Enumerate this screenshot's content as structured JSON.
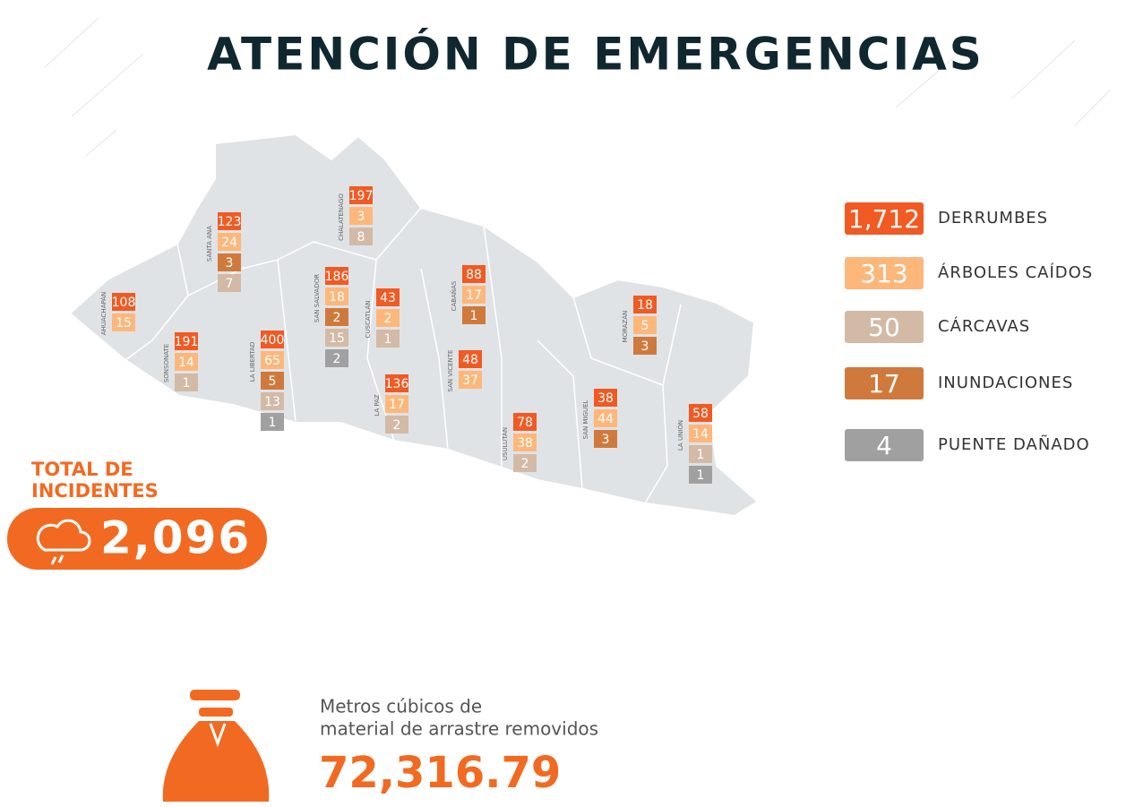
{
  "title": "ATENCIÓN DE EMERGENCIAS",
  "departments": [
    {
      "name": "AHUACHAPÁN",
      "boxes": [
        {
          "value": 108,
          "color": "#f15a22"
        },
        {
          "value": 15,
          "color": "#fdb77b"
        }
      ]
    },
    {
      "name": "SANTA ANA",
      "boxes": [
        {
          "value": 123,
          "color": "#f15a22"
        },
        {
          "value": 24,
          "color": "#fdb77b"
        },
        {
          "value": 3,
          "color": "#cf7a3c"
        },
        {
          "value": 7,
          "color": "#d3baa6"
        }
      ]
    },
    {
      "name": "SONSONATE",
      "boxes": [
        {
          "value": 191,
          "color": "#f15a22"
        },
        {
          "value": 14,
          "color": "#fdb77b"
        },
        {
          "value": 1,
          "color": "#d3baa6"
        }
      ]
    },
    {
      "name": "LA LIBERTAD",
      "boxes": [
        {
          "value": 400,
          "color": "#f15a22"
        },
        {
          "value": 65,
          "color": "#fdb77b"
        },
        {
          "value": 5,
          "color": "#cf7a3c"
        },
        {
          "value": 13,
          "color": "#d3baa6"
        },
        {
          "value": 1,
          "color": "#a0a0a0"
        }
      ]
    },
    {
      "name": "SAN SALVADOR",
      "boxes": [
        {
          "value": 186,
          "color": "#f15a22"
        },
        {
          "value": 18,
          "color": "#fdb77b"
        },
        {
          "value": 2,
          "color": "#cf7a3c"
        },
        {
          "value": 15,
          "color": "#d3baa6"
        },
        {
          "value": 2,
          "color": "#a0a0a0"
        }
      ]
    },
    {
      "name": "CHALATENAGO",
      "boxes": [
        {
          "value": 197,
          "color": "#f15a22"
        },
        {
          "value": 3,
          "color": "#fdb77b"
        },
        {
          "value": 8,
          "color": "#d3baa6"
        }
      ]
    },
    {
      "name": "CUSCATLÁN",
      "boxes": [
        {
          "value": 43,
          "color": "#f15a22"
        },
        {
          "value": 2,
          "color": "#fdb77b"
        },
        {
          "value": 1,
          "color": "#d3baa6"
        }
      ]
    },
    {
      "name": "CABAÑAS",
      "boxes": [
        {
          "value": 88,
          "color": "#f15a22"
        },
        {
          "value": 17,
          "color": "#fdb77b"
        },
        {
          "value": 1,
          "color": "#cf7a3c"
        }
      ]
    },
    {
      "name": "LA PAZ",
      "boxes": [
        {
          "value": 136,
          "color": "#f15a22"
        },
        {
          "value": 17,
          "color": "#fdb77b"
        },
        {
          "value": 2,
          "color": "#d3baa6"
        }
      ]
    },
    {
      "name": "SAN VICENTE",
      "boxes": [
        {
          "value": 48,
          "color": "#f15a22"
        },
        {
          "value": 37,
          "color": "#fdb77b"
        }
      ]
    },
    {
      "name": "USULUTÁN",
      "boxes": [
        {
          "value": 78,
          "color": "#f15a22"
        },
        {
          "value": 38,
          "color": "#fdb77b"
        },
        {
          "value": 2,
          "color": "#d3baa6"
        }
      ]
    },
    {
      "name": "SAN MIGUEL",
      "boxes": [
        {
          "value": 38,
          "color": "#f15a22"
        },
        {
          "value": 44,
          "color": "#fdb77b"
        },
        {
          "value": 3,
          "color": "#cf7a3c"
        }
      ]
    },
    {
      "name": "MORAZÁN",
      "boxes": [
        {
          "value": 18,
          "color": "#f15a22"
        },
        {
          "value": 5,
          "color": "#fdb77b"
        },
        {
          "value": 3,
          "color": "#cf7a3c"
        }
      ]
    },
    {
      "name": "LA UNIÓN",
      "boxes": [
        {
          "value": 58,
          "color": "#f15a22"
        },
        {
          "value": 14,
          "color": "#fdb77b"
        },
        {
          "value": 1,
          "color": "#d3baa6"
        },
        {
          "value": 1,
          "color": "#a0a0a0"
        }
      ]
    }
  ],
  "legend": [
    {
      "value": {
        "value": 1712,
        "label": "1,712"
      },
      "label": "DERRUMBES",
      "color": "#f15a22"
    },
    {
      "value": 313,
      "label": "ÁRBOLES CAÍDOS",
      "color": "#fdb77b"
    },
    {
      "value": 50,
      "label": "CÁRCAVAS",
      "color": "#d3baa6"
    },
    {
      "value": 17,
      "label": "INUNDACIONES",
      "color": "#cf7a3c"
    },
    {
      "value": 4,
      "label": "PUENTE DAÑADO",
      "color": "#a0a0a0"
    }
  ],
  "total": {
    "title_lines": [
      "TOTAL DE",
      "INCIDENTES"
    ],
    "value": {
      "value": 2096,
      "label": "2,096"
    }
  },
  "material": {
    "lines": [
      "Metros cúbicos de",
      "material de arrastre removidos"
    ],
    "value": {
      "value": 72316.79,
      "label": "72,316.79"
    }
  }
}
